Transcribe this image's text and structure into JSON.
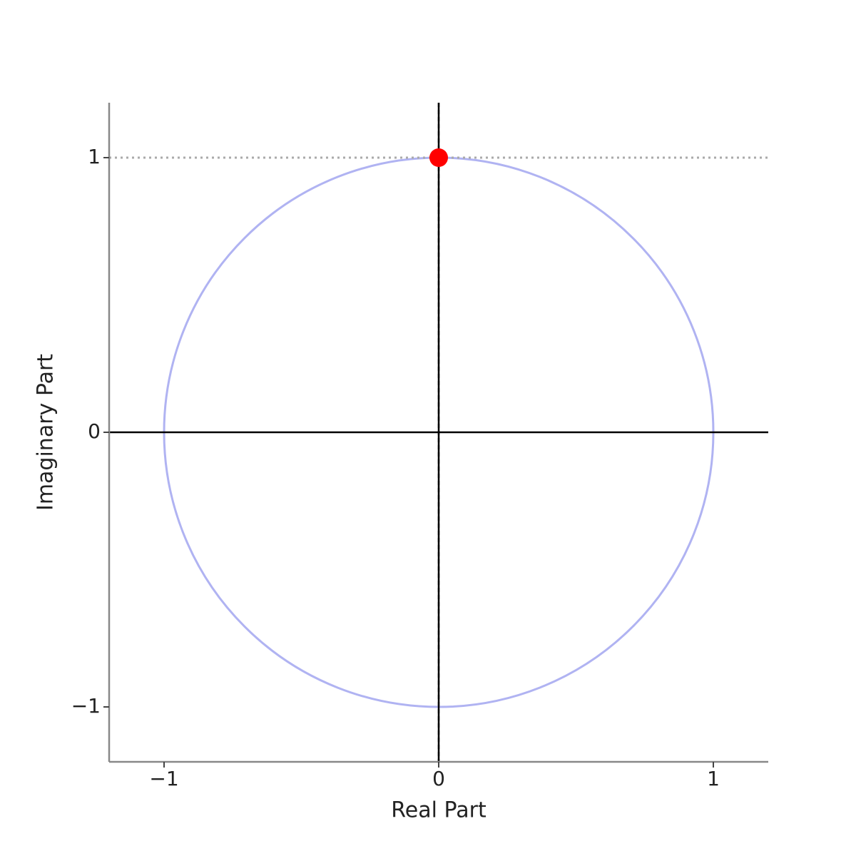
{
  "chart_data": {
    "type": "scatter",
    "xlabel": "Real Part",
    "ylabel": "Imaginary Part",
    "series": [
      {
        "color": "#ff0000",
        "x": [
          0
        ],
        "values": [
          1
        ]
      }
    ],
    "circle": {
      "radius": 1,
      "color": "#b0b3f2"
    },
    "guides": {
      "x": 0,
      "y": 1,
      "color": "#aaaaaa"
    },
    "zero_lines": true,
    "xlim": [
      -1.2,
      1.2
    ],
    "ylim": [
      -1.2,
      1.2
    ],
    "xticks": [
      {
        "value": -1,
        "label": "−1"
      },
      0,
      1
    ],
    "yticks": [
      {
        "value": -1,
        "label": "−1"
      },
      0,
      1
    ]
  }
}
